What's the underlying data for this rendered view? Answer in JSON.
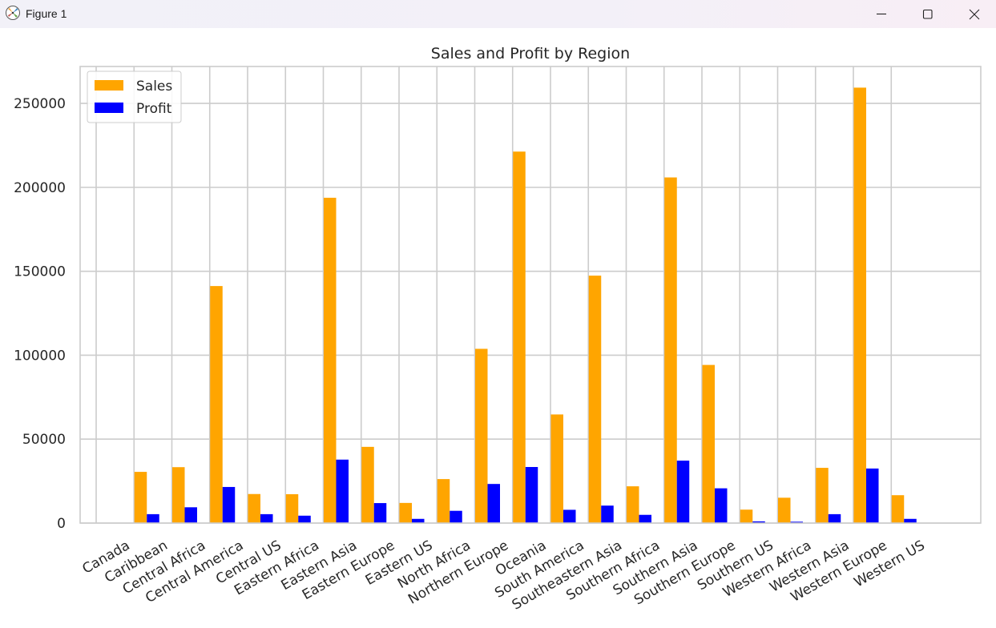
{
  "window": {
    "title": "Figure 1"
  },
  "chart_data": {
    "type": "bar",
    "title": "Sales and Profit by Region",
    "xlabel": "",
    "ylabel": "",
    "categories": [
      "Canada",
      "Caribbean",
      "Central Africa",
      "Central America",
      "Central US",
      "Eastern Africa",
      "Eastern Asia",
      "Eastern Europe",
      "Eastern US",
      "North Africa",
      "Northern Europe",
      "Oceania",
      "South America",
      "Southeastern Asia",
      "Southern Africa",
      "Southern Asia",
      "Southern Europe",
      "Southern US",
      "Western Africa",
      "Western Asia",
      "Western Europe",
      "Western US"
    ],
    "series": [
      {
        "name": "Sales",
        "color": "#ffa500",
        "values": [
          0,
          30500,
          33300,
          141200,
          17300,
          17200,
          193800,
          45400,
          12000,
          26200,
          103800,
          221300,
          64700,
          147400,
          21900,
          205900,
          94200,
          8000,
          15100,
          32900,
          259400,
          16600
        ]
      },
      {
        "name": "Profit",
        "color": "#0000ff",
        "values": [
          0,
          5300,
          9400,
          21500,
          5300,
          4400,
          37800,
          11900,
          2500,
          7300,
          23300,
          33400,
          7900,
          10400,
          4900,
          37200,
          20700,
          1000,
          800,
          5300,
          32500,
          2500
        ]
      }
    ],
    "yticks": [
      0,
      50000,
      100000,
      150000,
      200000,
      250000
    ],
    "ylim": [
      0,
      272000
    ],
    "grid": true,
    "legend_position": "upper left"
  }
}
